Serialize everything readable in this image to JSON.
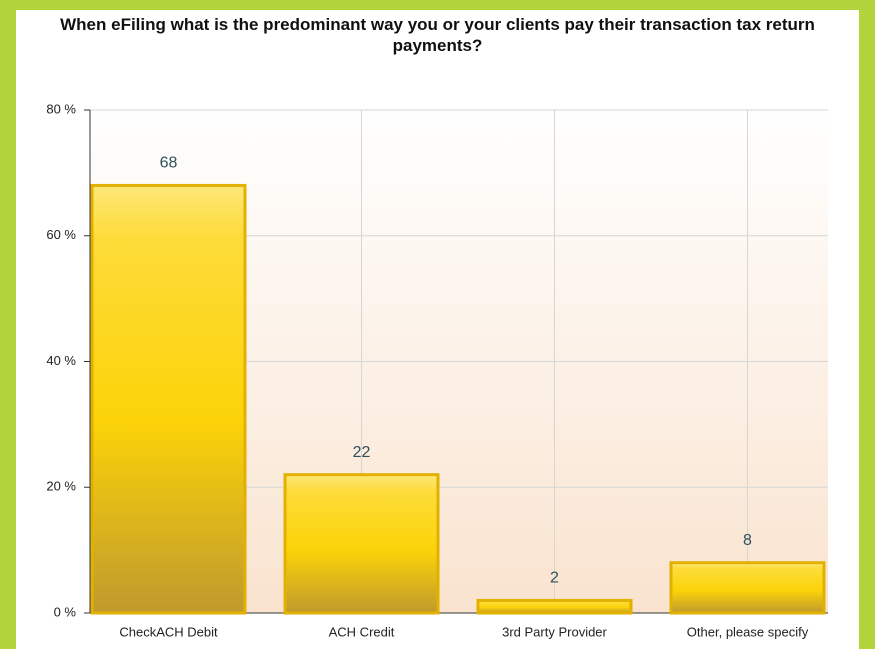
{
  "chart_data": {
    "type": "bar",
    "title": "When eFiling what is the predominant way you or your clients pay their transaction tax return payments?",
    "categories": [
      "CheckACH Debit",
      "ACH Credit",
      "3rd Party Provider",
      "Other, please specify"
    ],
    "values": [
      68,
      22,
      2,
      8
    ],
    "color": "#fcd308",
    "ylim": [
      0,
      80
    ],
    "yticks": [
      {
        "value": 0,
        "label": "0 %"
      },
      {
        "value": 20,
        "label": "20 %"
      },
      {
        "value": 40,
        "label": "40 %"
      },
      {
        "value": 60,
        "label": "60 %"
      },
      {
        "value": 80,
        "label": "80 %"
      }
    ],
    "grid": true
  }
}
